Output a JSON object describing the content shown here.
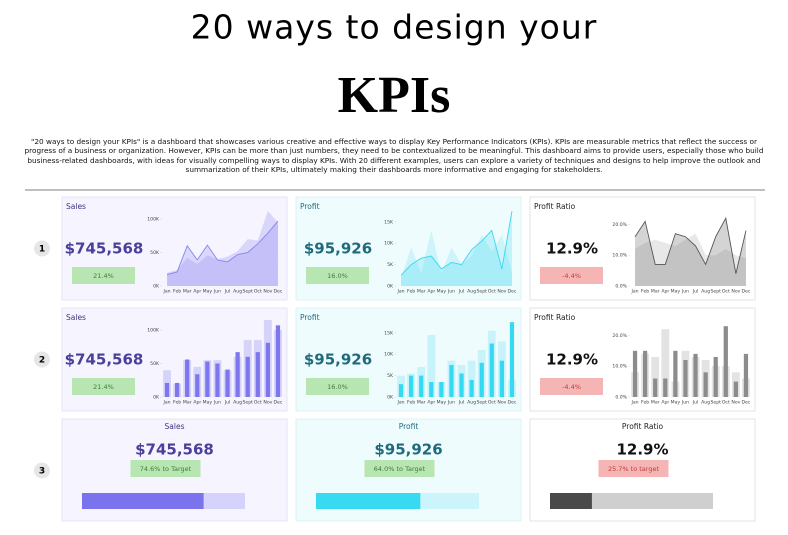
{
  "header": {
    "title": "20 ways to design your",
    "logo": "KPIs",
    "description": "\"20 ways to design your KPIs\" is a dashboard that showcases various creative and effective ways to display Key Performance Indicators (KPIs). KPIs are measurable metrics that reflect the success or progress of a business or organization. However, KPIs can be more than just numbers, they need to be contextualized to be meaningful. This dashboard aims to provide users, especially those who build business-related dashboards, with ideas for visually compelling ways to display KPIs. With 20 different examples, users can explore a variety of techniques and designs to help improve the outlook and summarization of their KPIs, ultimately making their dashboards more informative and engaging for stakeholders."
  },
  "row_labels": [
    "1",
    "2",
    "3"
  ],
  "cards": [
    {
      "title": "Sales",
      "value": "$745,568",
      "badge": "21.4%"
    },
    {
      "title": "Profit",
      "value": "$95,926",
      "badge": "16.0%"
    },
    {
      "title": "Profit Ratio",
      "value": "12.9%",
      "badge": "-4.4%"
    },
    {
      "title": "Sales",
      "value": "$745,568",
      "badge": "21.4%"
    },
    {
      "title": "Profit",
      "value": "$95,926",
      "badge": "16.0%"
    },
    {
      "title": "Profit Ratio",
      "value": "12.9%",
      "badge": "-4.4%"
    },
    {
      "title": "Sales",
      "value": "$745,568"
    },
    {
      "title": "Profit",
      "value": "$95,926"
    },
    {
      "title": "Profit Ratio",
      "value": "12.9%"
    }
  ],
  "chart_data": [
    {
      "type": "area",
      "categories": [
        "Jan",
        "Feb",
        "Mar",
        "Apr",
        "May",
        "Jun",
        "Jul",
        "Aug",
        "Sept",
        "Oct",
        "Nov",
        "Dec"
      ],
      "series": [
        {
          "color": "#d6d3fb",
          "values": [
            20000,
            24000,
            42000,
            33000,
            46000,
            40000,
            44000,
            52000,
            70000,
            68000,
            112000,
            95000
          ]
        },
        {
          "color": "#8a83ee",
          "values": [
            17000,
            21000,
            60000,
            39000,
            61000,
            39000,
            36000,
            47000,
            50000,
            63000,
            79000,
            97000
          ]
        }
      ],
      "ylim": [
        0,
        115000
      ],
      "yticks": [
        {
          "value": 0,
          "label": "0K"
        },
        {
          "value": 50000,
          "label": "50K"
        },
        {
          "value": 100000,
          "label": "100K"
        }
      ]
    },
    {
      "type": "area",
      "categories": [
        "Jan",
        "Feb",
        "Mar",
        "Apr",
        "May",
        "Jun",
        "Jul",
        "Aug",
        "Sept",
        "Oct",
        "Nov",
        "Dec"
      ],
      "series": [
        {
          "color": "#c9f3fa",
          "values": [
            2000,
            9000,
            3000,
            13000,
            3000,
            9000,
            5000,
            7000,
            12000,
            8000,
            12000,
            3000
          ]
        },
        {
          "color": "#3ad8f0",
          "values": [
            2500,
            5000,
            6500,
            7000,
            4000,
            5500,
            5000,
            8500,
            10500,
            13000,
            4000,
            17500
          ]
        }
      ],
      "ylim": [
        0,
        18000
      ],
      "yticks": [
        {
          "value": 0,
          "label": "0K"
        },
        {
          "value": 5000,
          "label": "5K"
        },
        {
          "value": 10000,
          "label": "10K"
        },
        {
          "value": 15000,
          "label": "15K"
        }
      ]
    },
    {
      "type": "area",
      "categories": [
        "Jan",
        "Feb",
        "Mar",
        "Apr",
        "May",
        "Jun",
        "Jul",
        "Aug",
        "Sept",
        "Oct",
        "Nov",
        "Dec"
      ],
      "series": [
        {
          "color": "#e6e6e6",
          "values": [
            12,
            14,
            15,
            14,
            13,
            15,
            17,
            10,
            10,
            12,
            10,
            9
          ]
        },
        {
          "color": "#555555",
          "values": [
            16,
            21,
            7,
            7,
            17,
            16,
            13,
            7,
            16,
            22,
            4,
            18
          ]
        }
      ],
      "ylim": [
        0,
        25
      ],
      "yticks": [
        {
          "value": 0,
          "label": "0.0%"
        },
        {
          "value": 10,
          "label": "10.0%"
        },
        {
          "value": 20,
          "label": "20.0%"
        }
      ]
    },
    {
      "type": "bar",
      "categories": [
        "Jan",
        "Feb",
        "Mar",
        "Apr",
        "May",
        "Jun",
        "Jul",
        "Aug",
        "Sept",
        "Oct",
        "Nov",
        "Dec"
      ],
      "series": [
        {
          "color": "#d6d3fb",
          "values": [
            40000,
            20000,
            55000,
            45000,
            55000,
            55000,
            40000,
            60000,
            85000,
            85000,
            115000,
            100000
          ]
        },
        {
          "color": "#7e76ec",
          "values": [
            21000,
            21000,
            56000,
            34000,
            53000,
            50000,
            41000,
            67000,
            60000,
            67000,
            81000,
            107000
          ]
        }
      ],
      "ylim": [
        0,
        115000
      ],
      "yticks": [
        {
          "value": 0,
          "label": "0K"
        },
        {
          "value": 50000,
          "label": "50K"
        },
        {
          "value": 100000,
          "label": "100K"
        }
      ]
    },
    {
      "type": "bar",
      "categories": [
        "Jan",
        "Feb",
        "Mar",
        "Apr",
        "May",
        "Jun",
        "Jul",
        "Aug",
        "Sept",
        "Oct",
        "Nov",
        "Dec"
      ],
      "series": [
        {
          "color": "#c9f3fa",
          "values": [
            5000,
            5500,
            7000,
            14500,
            3500,
            8500,
            7500,
            8500,
            11000,
            15500,
            13000,
            4000
          ]
        },
        {
          "color": "#36d9f1",
          "values": [
            3000,
            5000,
            5000,
            3500,
            3500,
            7500,
            5500,
            4000,
            8000,
            12500,
            8500,
            17500
          ]
        }
      ],
      "ylim": [
        0,
        18000
      ],
      "yticks": [
        {
          "value": 0,
          "label": "0K"
        },
        {
          "value": 5000,
          "label": "5K"
        },
        {
          "value": 10000,
          "label": "10K"
        },
        {
          "value": 15000,
          "label": "15K"
        }
      ]
    },
    {
      "type": "bar",
      "categories": [
        "Jan",
        "Feb",
        "Mar",
        "Apr",
        "May",
        "Jun",
        "Jul",
        "Aug",
        "Sept",
        "Oct",
        "Nov",
        "Dec"
      ],
      "series": [
        {
          "color": "#e3e3e3",
          "values": [
            8,
            14,
            13,
            22,
            5,
            15,
            13,
            12,
            10,
            10,
            8,
            6
          ]
        },
        {
          "color": "#8c8c8c",
          "values": [
            15,
            15,
            6,
            6,
            15,
            12,
            14,
            8,
            13,
            23,
            5,
            14
          ]
        }
      ],
      "ylim": [
        0,
        25
      ],
      "yticks": [
        {
          "value": 0,
          "label": "0.0%"
        },
        {
          "value": 10,
          "label": "10.0%"
        },
        {
          "value": 20,
          "label": "20.0%"
        }
      ]
    },
    {
      "type": "progress",
      "values": [
        74.6
      ],
      "value_labels": [
        "74.6% to Target"
      ],
      "xlim": [
        0,
        100
      ],
      "color": "#7b72ee",
      "track_color": "#d5d3fb"
    },
    {
      "type": "progress",
      "values": [
        64.0
      ],
      "value_labels": [
        "64.0% to Target"
      ],
      "xlim": [
        0,
        100
      ],
      "color": "#36dbf3",
      "track_color": "#ccf5fb"
    },
    {
      "type": "progress",
      "values": [
        25.7
      ],
      "value_labels": [
        "25.7% to target"
      ],
      "xlim": [
        0,
        100
      ],
      "color": "#4a4a4a",
      "track_color": "#cfcfcf"
    }
  ]
}
